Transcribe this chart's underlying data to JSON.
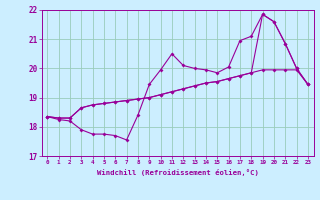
{
  "xlabel": "Windchill (Refroidissement éolien,°C)",
  "bg_color": "#cceeff",
  "line_color": "#990099",
  "grid_color": "#99ccbb",
  "xlim": [
    -0.5,
    23.5
  ],
  "ylim": [
    17,
    22
  ],
  "yticks": [
    17,
    18,
    19,
    20,
    21,
    22
  ],
  "xticks": [
    0,
    1,
    2,
    3,
    4,
    5,
    6,
    7,
    8,
    9,
    10,
    11,
    12,
    13,
    14,
    15,
    16,
    17,
    18,
    19,
    20,
    21,
    22,
    23
  ],
  "series1_x": [
    0,
    1,
    2,
    3,
    4,
    5,
    6,
    7,
    8,
    9,
    10,
    11,
    12,
    13,
    14,
    15,
    16,
    17,
    18,
    19,
    20,
    21,
    22,
    23
  ],
  "series1_y": [
    18.35,
    18.25,
    18.2,
    17.9,
    17.75,
    17.75,
    17.7,
    17.55,
    18.4,
    19.45,
    19.95,
    20.5,
    20.1,
    20.0,
    19.95,
    19.85,
    20.05,
    20.95,
    21.1,
    21.85,
    21.6,
    20.85,
    20.0,
    19.45
  ],
  "series2_x": [
    0,
    1,
    2,
    3,
    4,
    5,
    6,
    7,
    8,
    9,
    10,
    11,
    12,
    13,
    14,
    15,
    16,
    17,
    18,
    19,
    20,
    21,
    22,
    23
  ],
  "series2_y": [
    18.35,
    18.3,
    18.3,
    18.65,
    18.75,
    18.8,
    18.85,
    18.9,
    18.95,
    19.0,
    19.1,
    19.2,
    19.3,
    19.4,
    19.5,
    19.55,
    19.65,
    19.75,
    19.85,
    19.95,
    19.95,
    19.95,
    19.95,
    19.45
  ],
  "series3_x": [
    0,
    1,
    2,
    3,
    4,
    5,
    6,
    7,
    8,
    9,
    10,
    11,
    12,
    13,
    14,
    15,
    16,
    17,
    18,
    19,
    20,
    21,
    22,
    23
  ],
  "series3_y": [
    18.35,
    18.3,
    18.3,
    18.65,
    18.75,
    18.8,
    18.85,
    18.9,
    18.95,
    19.0,
    19.1,
    19.2,
    19.3,
    19.4,
    19.5,
    19.55,
    19.65,
    19.75,
    19.85,
    21.85,
    21.6,
    20.85,
    20.0,
    19.45
  ]
}
